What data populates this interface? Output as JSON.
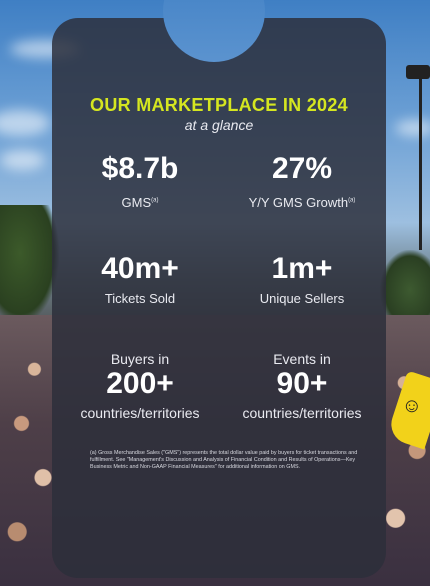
{
  "header": {
    "title": "OUR MARKETPLACE IN 2024",
    "subtitle": "at a glance"
  },
  "stats": {
    "gms": {
      "value": "$8.7b",
      "label": "GMS",
      "note": "(a)"
    },
    "growth": {
      "value": "27%",
      "label": "Y/Y GMS Growth",
      "note": "(a)"
    },
    "tickets": {
      "value": "40m+",
      "label": "Tickets Sold"
    },
    "sellers": {
      "value": "1m+",
      "label": "Unique Sellers"
    },
    "buyers": {
      "prefix": "Buyers in",
      "value": "200+",
      "label": "countries/territories"
    },
    "events": {
      "prefix": "Events in",
      "value": "90+",
      "label": "countries/territories"
    }
  },
  "footnote": "(a) Gross Merchandise Sales (\"GMS\") represents the total dollar value paid by buyers for ticket transactions and fulfillment. See \"Management's Discussion and Analysis of Financial Condition and Results of Operations—Key Business Metric and Non-GAAP Financial Measures\" for additional information on GMS.",
  "colors": {
    "accent": "#d5e620",
    "panel": "#2c2e3a",
    "text": "#ffffff"
  }
}
